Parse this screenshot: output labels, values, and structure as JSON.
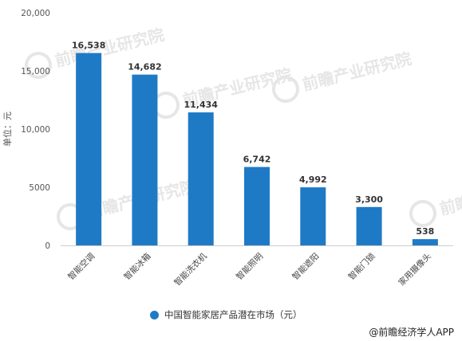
{
  "chart_data": {
    "type": "bar",
    "categories": [
      "智能空调",
      "智能冰箱",
      "智能洗衣机",
      "智能照明",
      "智能遮阳",
      "智能门锁",
      "家用摄像头"
    ],
    "series": [
      {
        "name": "中国智能家居产品潜在市场（元）",
        "values": [
          16538,
          14682,
          11434,
          6742,
          4992,
          3300,
          538
        ]
      }
    ],
    "data_labels": [
      "16,538",
      "14,682",
      "11,434",
      "6,742",
      "4,992",
      "3,300",
      "538"
    ],
    "ylabel": "单位：元",
    "xlabel": "",
    "ylim": [
      0,
      20000
    ],
    "yticks": [
      0,
      5000,
      10000,
      15000,
      20000
    ],
    "ytick_labels": [
      "0",
      "5000",
      "10,000",
      "15,000",
      "20,000"
    ],
    "grid": false,
    "legend_position": "bottom",
    "bar_color": "#1f7ac6"
  },
  "watermark": {
    "text": "前瞻产业研究院",
    "color": "#e6e6e6"
  },
  "legend": {
    "label": "中国智能家居产品潜在市场（元）",
    "color": "#1f7ac6"
  },
  "source": "@前瞻经济学人APP"
}
